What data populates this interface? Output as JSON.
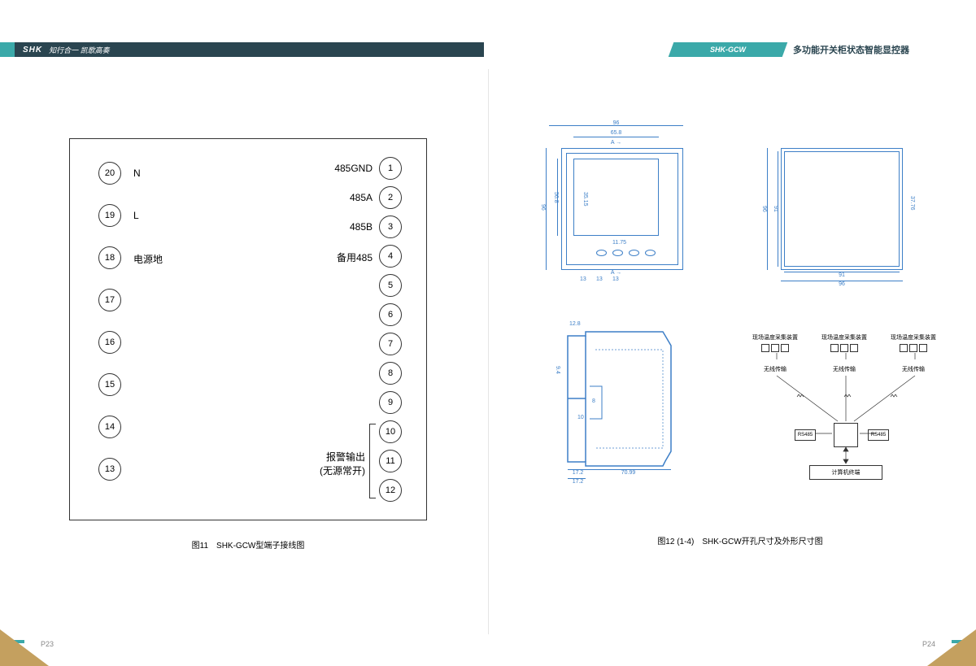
{
  "header": {
    "brand": "SHK",
    "tagline_left": "知行合一 凯歌高奏",
    "product_code": "SHK-GCW",
    "product_title": "多功能开关柜状态智能显控器"
  },
  "left_diagram": {
    "left_terminals": [
      {
        "num": "20",
        "label": "N"
      },
      {
        "num": "19",
        "label": "L"
      },
      {
        "num": "18",
        "label": "电源地"
      },
      {
        "num": "17",
        "label": ""
      },
      {
        "num": "16",
        "label": ""
      },
      {
        "num": "15",
        "label": ""
      },
      {
        "num": "14",
        "label": ""
      },
      {
        "num": "13",
        "label": ""
      }
    ],
    "right_terminals": [
      {
        "num": "1",
        "label": "485GND"
      },
      {
        "num": "2",
        "label": "485A"
      },
      {
        "num": "3",
        "label": "485B"
      },
      {
        "num": "4",
        "label": "备用485"
      },
      {
        "num": "5",
        "label": ""
      },
      {
        "num": "6",
        "label": ""
      },
      {
        "num": "7",
        "label": ""
      },
      {
        "num": "8",
        "label": ""
      },
      {
        "num": "9",
        "label": ""
      },
      {
        "num": "10",
        "label": ""
      },
      {
        "num": "11",
        "label": ""
      },
      {
        "num": "12",
        "label": ""
      }
    ],
    "alarm_label_l1": "报警输出",
    "alarm_label_l2": "(无源常开)",
    "caption": "图11　SHK-GCW型端子接线图"
  },
  "right_diagram": {
    "caption": "图12 (1-4)　SHK-GCW开孔尺寸及外形尺寸图",
    "front_view": {
      "outer_w": "96",
      "outer_h": "96",
      "screen_w": "65.8",
      "screen_h": "56.8",
      "inner_h": "35.15",
      "section_marker": "A",
      "btn_spacing": "13",
      "btn_offset": "11.75"
    },
    "cutout_view": {
      "outer_w": "96",
      "outer_h": "96",
      "inner_w": "91",
      "inner_h": "91",
      "depth": "37.76"
    },
    "side_view": {
      "total_w": "70.99",
      "flange": "17.2",
      "top_offset": "12.8",
      "step1": "9.4",
      "step2": "8",
      "step3": "10"
    },
    "system": {
      "sensor_label": "现场温度采集装置",
      "wireless_label": "无线传输",
      "rs485_label": "RS485",
      "terminal_label": "计算机终端"
    }
  },
  "page_left": "P23",
  "page_right": "P24",
  "style": {
    "accent": "#3ba9a9",
    "dark": "#2a4550",
    "line_blue": "#3d7fc7",
    "gold": "#c4a05f"
  }
}
